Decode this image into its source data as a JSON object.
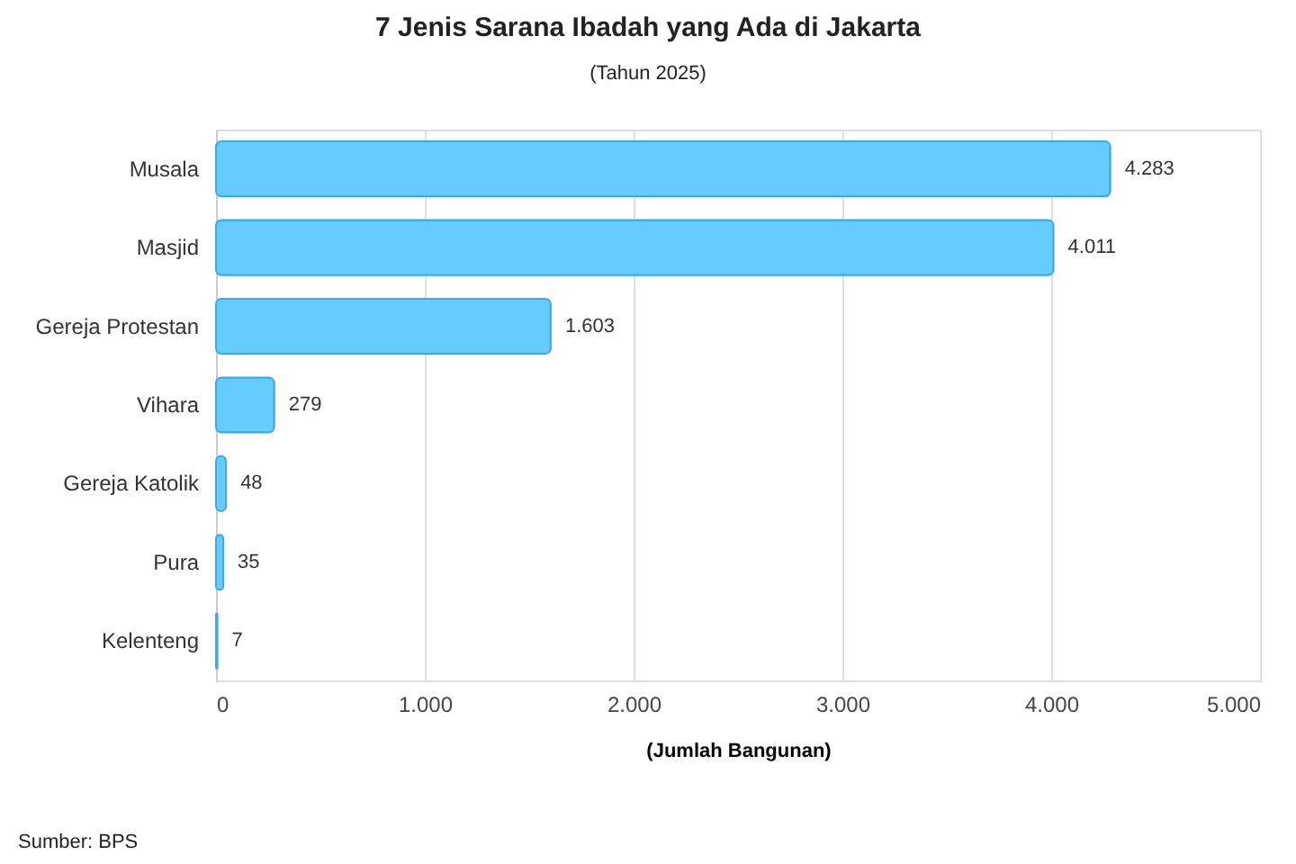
{
  "chart_data": {
    "type": "bar",
    "orientation": "horizontal",
    "title": "7 Jenis Sarana Ibadah yang Ada di Jakarta",
    "subtitle": "(Tahun 2025)",
    "xlabel": "(Jumlah Bangunan)",
    "categories": [
      "Musala",
      "Masjid",
      "Gereja Protestan",
      "Vihara",
      "Gereja Katolik",
      "Pura",
      "Kelenteng"
    ],
    "values": [
      4283,
      4011,
      1603,
      279,
      48,
      35,
      7
    ],
    "value_labels": [
      "4.283",
      "4.011",
      "1.603",
      "279",
      "48",
      "35",
      "7"
    ],
    "color": "#66ccff",
    "xlim": [
      0,
      5000
    ],
    "xticks": [
      {
        "value": 0,
        "label": "0"
      },
      {
        "value": 1000,
        "label": "1.000"
      },
      {
        "value": 2000,
        "label": "2.000"
      },
      {
        "value": 3000,
        "label": "3.000"
      },
      {
        "value": 4000,
        "label": "4.000"
      },
      {
        "value": 5000,
        "label": "5.000"
      }
    ],
    "grid": "x",
    "annotations": [
      "Sumber: BPS"
    ]
  }
}
